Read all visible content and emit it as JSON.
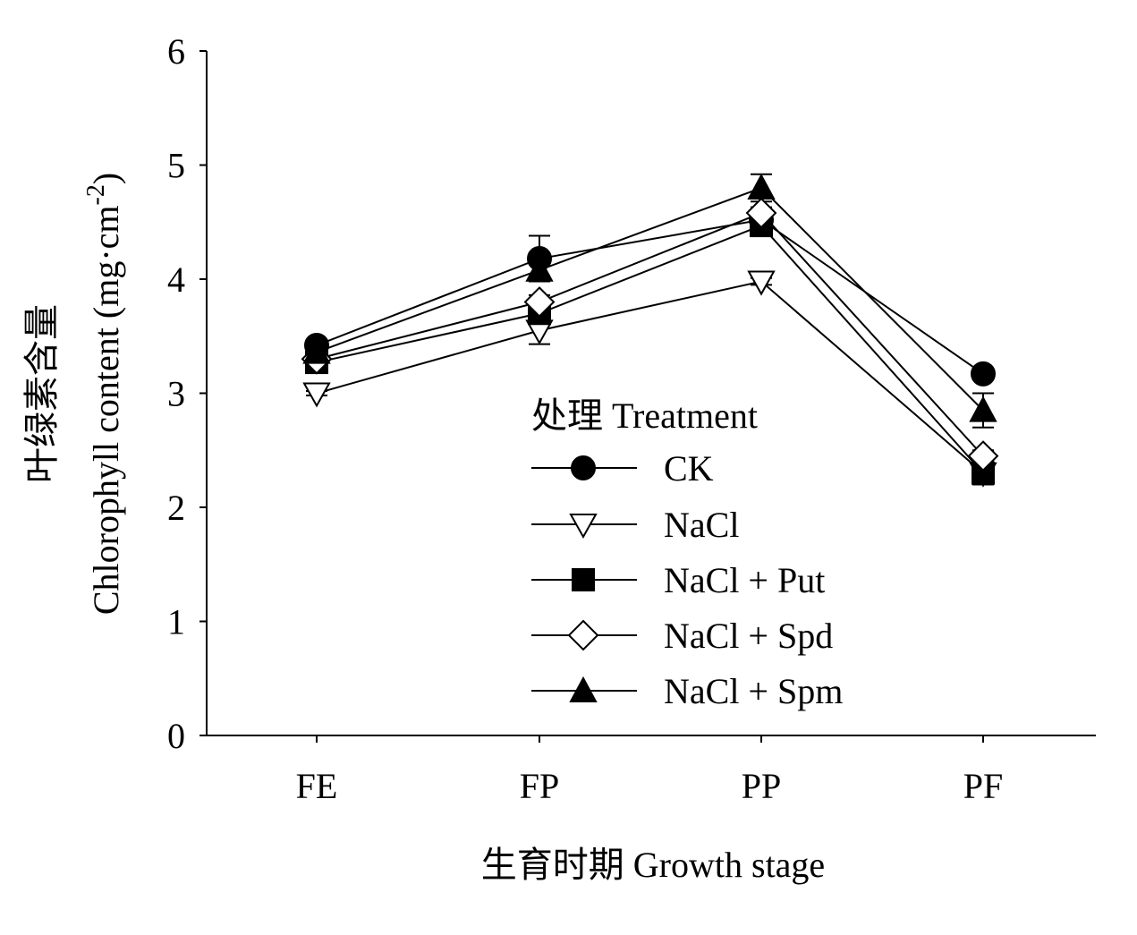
{
  "chart_data": {
    "type": "line",
    "categories": [
      "FE",
      "FP",
      "PP",
      "PF"
    ],
    "ylim": [
      0,
      6
    ],
    "yticks": [
      0,
      1,
      2,
      3,
      4,
      5,
      6
    ],
    "ylabel_cn": "叶绿素含量",
    "ylabel_en": "Chlorophyll content (mg·cm",
    "ylabel_en_sup": "-2",
    "ylabel_en_close": ")",
    "xlabel": "生育时期  Growth stage",
    "legend_title": "处理 Treatment",
    "grid": false,
    "legend_position": "lower-right",
    "series": [
      {
        "name": "CK",
        "marker": "circle-filled",
        "values": [
          3.42,
          4.18,
          4.52,
          3.17
        ],
        "errors": [
          0.03,
          0.2,
          0.05,
          0.03
        ]
      },
      {
        "name": "NaCl",
        "marker": "triangle-down-open",
        "values": [
          3.0,
          3.55,
          3.98,
          2.3
        ],
        "errors": [
          0.02,
          0.12,
          0.03,
          0.1
        ]
      },
      {
        "name": "NaCl + Put",
        "marker": "square-filled",
        "values": [
          3.27,
          3.7,
          4.47,
          2.3
        ],
        "errors": [
          0.03,
          0.08,
          0.05,
          0.06
        ]
      },
      {
        "name": "NaCl + Spd",
        "marker": "diamond-open",
        "values": [
          3.3,
          3.8,
          4.58,
          2.45
        ],
        "errors": [
          0.03,
          0.06,
          0.05,
          0.05
        ]
      },
      {
        "name": "NaCl + Spm",
        "marker": "triangle-up-filled",
        "values": [
          3.36,
          4.08,
          4.8,
          2.85
        ],
        "errors": [
          0.03,
          0.05,
          0.12,
          0.15
        ]
      }
    ]
  }
}
